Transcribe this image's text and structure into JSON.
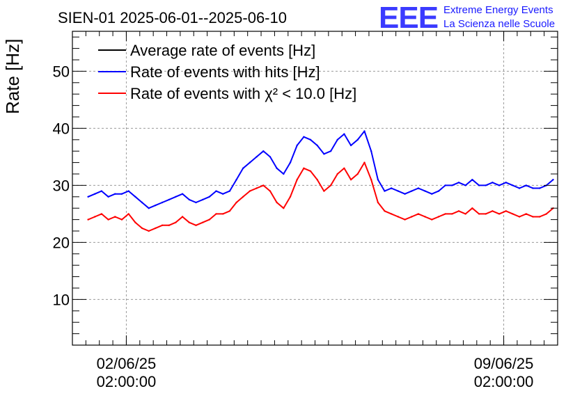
{
  "chart_data": {
    "type": "line",
    "title": "SIEN-01 2025-06-01--2025-06-10",
    "ylabel": "Rate [Hz]",
    "xlabel": "",
    "xlim": [
      "2025-06-01 02:00:00",
      "2025-06-10 02:00:00"
    ],
    "ylim": [
      2,
      57
    ],
    "x_ticks": [
      {
        "x": "2025-06-02 02:00:00",
        "label_line1": "02/06/25",
        "label_line2": "02:00:00"
      },
      {
        "x": "2025-06-09 02:00:00",
        "label_line1": "09/06/25",
        "label_line2": "02:00:00"
      }
    ],
    "y_ticks": [
      10,
      20,
      30,
      40,
      50
    ],
    "grid": true,
    "legend_position": "top-left",
    "logo": {
      "mark": "EEE",
      "line1": "Extreme Energy Events",
      "line2": "La Scienza nelle Scuole",
      "color": "#1a1aff"
    },
    "series": [
      {
        "name": "Average rate of events [Hz]",
        "color": "#000000",
        "x": [],
        "y": []
      },
      {
        "name": "Rate of events with hits [Hz]",
        "color": "#0000ff",
        "x": [
          "2025-06-01 09:00",
          "2025-06-01 12:00",
          "2025-06-01 15:00",
          "2025-06-01 18:00",
          "2025-06-01 21:00",
          "2025-06-02 00:00",
          "2025-06-02 03:00",
          "2025-06-02 06:00",
          "2025-06-02 09:00",
          "2025-06-02 12:00",
          "2025-06-02 15:00",
          "2025-06-02 18:00",
          "2025-06-02 21:00",
          "2025-06-03 00:00",
          "2025-06-03 03:00",
          "2025-06-03 06:00",
          "2025-06-03 09:00",
          "2025-06-03 12:00",
          "2025-06-03 15:00",
          "2025-06-03 18:00",
          "2025-06-03 21:00",
          "2025-06-04 00:00",
          "2025-06-04 03:00",
          "2025-06-04 06:00",
          "2025-06-04 09:00",
          "2025-06-04 12:00",
          "2025-06-04 15:00",
          "2025-06-04 18:00",
          "2025-06-04 21:00",
          "2025-06-05 00:00",
          "2025-06-05 03:00",
          "2025-06-05 06:00",
          "2025-06-05 09:00",
          "2025-06-05 12:00",
          "2025-06-05 15:00",
          "2025-06-05 18:00",
          "2025-06-05 21:00",
          "2025-06-06 00:00",
          "2025-06-06 03:00",
          "2025-06-06 06:00",
          "2025-06-06 09:00",
          "2025-06-06 12:00",
          "2025-06-06 15:00",
          "2025-06-06 18:00",
          "2025-06-06 21:00",
          "2025-06-07 00:00",
          "2025-06-07 03:00",
          "2025-06-07 06:00",
          "2025-06-07 09:00",
          "2025-06-07 12:00",
          "2025-06-07 15:00",
          "2025-06-07 18:00",
          "2025-06-07 21:00",
          "2025-06-08 00:00",
          "2025-06-08 03:00",
          "2025-06-08 06:00",
          "2025-06-08 09:00",
          "2025-06-08 12:00",
          "2025-06-08 15:00",
          "2025-06-08 18:00",
          "2025-06-08 21:00",
          "2025-06-09 00:00",
          "2025-06-09 03:00",
          "2025-06-09 06:00",
          "2025-06-09 09:00",
          "2025-06-09 12:00",
          "2025-06-09 15:00",
          "2025-06-09 18:00",
          "2025-06-09 21:00",
          "2025-06-10 00:00"
        ],
        "y": [
          28,
          28.5,
          29,
          28,
          28.5,
          28.5,
          29,
          28,
          27,
          26,
          26.5,
          27,
          27.5,
          28,
          28.5,
          27.5,
          27,
          27.5,
          28,
          29,
          28.5,
          29,
          31,
          33,
          34,
          35,
          36,
          35,
          33,
          32,
          34,
          37,
          38.5,
          38,
          37,
          35.5,
          36,
          38,
          39,
          37,
          38,
          39.5,
          36,
          31,
          29,
          29.5,
          29,
          28.5,
          29,
          29.5,
          29,
          28.5,
          29,
          30,
          30,
          30.5,
          30,
          31,
          30,
          30,
          30.5,
          30,
          30.5,
          30,
          29.5,
          30,
          29.5,
          29.5,
          30,
          31
        ]
      },
      {
        "name": "Rate of events with χ² < 10.0 [Hz]",
        "color": "#ff0000",
        "x": [
          "2025-06-01 09:00",
          "2025-06-01 12:00",
          "2025-06-01 15:00",
          "2025-06-01 18:00",
          "2025-06-01 21:00",
          "2025-06-02 00:00",
          "2025-06-02 03:00",
          "2025-06-02 06:00",
          "2025-06-02 09:00",
          "2025-06-02 12:00",
          "2025-06-02 15:00",
          "2025-06-02 18:00",
          "2025-06-02 21:00",
          "2025-06-03 00:00",
          "2025-06-03 03:00",
          "2025-06-03 06:00",
          "2025-06-03 09:00",
          "2025-06-03 12:00",
          "2025-06-03 15:00",
          "2025-06-03 18:00",
          "2025-06-03 21:00",
          "2025-06-04 00:00",
          "2025-06-04 03:00",
          "2025-06-04 06:00",
          "2025-06-04 09:00",
          "2025-06-04 12:00",
          "2025-06-04 15:00",
          "2025-06-04 18:00",
          "2025-06-04 21:00",
          "2025-06-05 00:00",
          "2025-06-05 03:00",
          "2025-06-05 06:00",
          "2025-06-05 09:00",
          "2025-06-05 12:00",
          "2025-06-05 15:00",
          "2025-06-05 18:00",
          "2025-06-05 21:00",
          "2025-06-06 00:00",
          "2025-06-06 03:00",
          "2025-06-06 06:00",
          "2025-06-06 09:00",
          "2025-06-06 12:00",
          "2025-06-06 15:00",
          "2025-06-06 18:00",
          "2025-06-06 21:00",
          "2025-06-07 00:00",
          "2025-06-07 03:00",
          "2025-06-07 06:00",
          "2025-06-07 09:00",
          "2025-06-07 12:00",
          "2025-06-07 15:00",
          "2025-06-07 18:00",
          "2025-06-07 21:00",
          "2025-06-08 00:00",
          "2025-06-08 03:00",
          "2025-06-08 06:00",
          "2025-06-08 09:00",
          "2025-06-08 12:00",
          "2025-06-08 15:00",
          "2025-06-08 18:00",
          "2025-06-08 21:00",
          "2025-06-09 00:00",
          "2025-06-09 03:00",
          "2025-06-09 06:00",
          "2025-06-09 09:00",
          "2025-06-09 12:00",
          "2025-06-09 15:00",
          "2025-06-09 18:00",
          "2025-06-09 21:00",
          "2025-06-10 00:00"
        ],
        "y": [
          24,
          24.5,
          25,
          24,
          24.5,
          24,
          25,
          23.5,
          22.5,
          22,
          22.5,
          23,
          23,
          23.5,
          24.5,
          23.5,
          23,
          23.5,
          24,
          25,
          25,
          25.5,
          27,
          28,
          29,
          29.5,
          30,
          29,
          27,
          26,
          28,
          31,
          33,
          32.5,
          31,
          29,
          30,
          32,
          33,
          31,
          32,
          34,
          31,
          27,
          25.5,
          25,
          24.5,
          24,
          24.5,
          25,
          24.5,
          24,
          24.5,
          25,
          25,
          25.5,
          25,
          26,
          25,
          25,
          25.5,
          25,
          25.5,
          25,
          24.5,
          25,
          24.5,
          24.5,
          25,
          26
        ]
      }
    ]
  }
}
